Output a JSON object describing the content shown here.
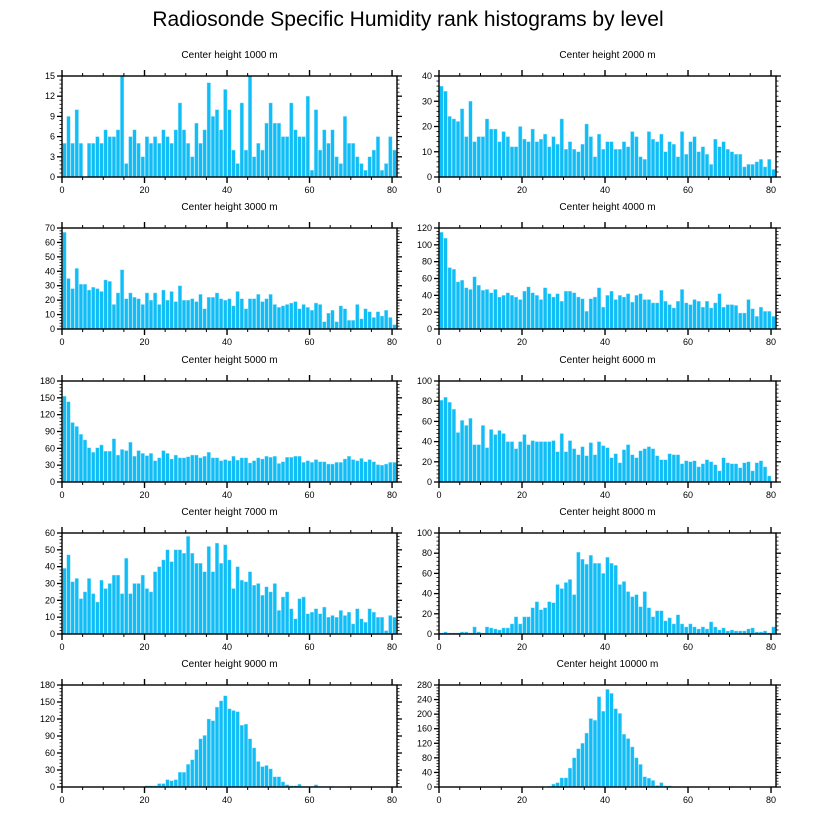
{
  "title": "Radiosonde Specific Humidity rank histograms by level",
  "colors": {
    "bar": "#10bdf6",
    "bar_edge": "#9fe4fb",
    "axis": "#000000"
  },
  "chart_data": [
    {
      "type": "bar",
      "title": "Center height 1000 m",
      "ylim": [
        0,
        15
      ],
      "yticks": [
        0,
        3,
        6,
        9,
        12,
        15
      ],
      "xlim": [
        0,
        81.2
      ],
      "xticks": [
        0,
        20,
        40,
        60,
        80
      ],
      "values": [
        5,
        9,
        5,
        10,
        5,
        0,
        5,
        5,
        6,
        5,
        7,
        6,
        6,
        7,
        15,
        2,
        6,
        7,
        5,
        3,
        6,
        5,
        6,
        5,
        7,
        6,
        5,
        7,
        11,
        7,
        5,
        3,
        8,
        5,
        7,
        14,
        9,
        10,
        7,
        13,
        10,
        4,
        2,
        11,
        4,
        15,
        3,
        5,
        4,
        8,
        11,
        8,
        8,
        6,
        6,
        11,
        7,
        6,
        6,
        12,
        1,
        10,
        4,
        7,
        5,
        7,
        3,
        2,
        9,
        5,
        5,
        3,
        2,
        1,
        3,
        4,
        6,
        1,
        2,
        6,
        4
      ]
    },
    {
      "type": "bar",
      "title": "Center height 2000 m",
      "ylim": [
        0,
        40
      ],
      "yticks": [
        0,
        10,
        20,
        30,
        40
      ],
      "xlim": [
        0,
        81.2
      ],
      "xticks": [
        0,
        20,
        40,
        60,
        80
      ],
      "values": [
        36,
        34,
        24,
        23,
        22,
        27,
        16,
        30,
        14,
        16,
        16,
        23,
        19,
        19,
        14,
        18,
        16,
        12,
        12,
        20,
        15,
        14,
        19,
        14,
        15,
        17,
        12,
        16,
        13,
        23,
        11,
        14,
        11,
        10,
        13,
        21,
        16,
        8,
        17,
        11,
        14,
        14,
        11,
        11,
        14,
        12,
        18,
        16,
        8,
        7,
        18,
        15,
        14,
        17,
        10,
        14,
        13,
        8,
        18,
        9,
        14,
        16,
        10,
        12,
        9,
        5,
        15,
        12,
        14,
        11,
        10,
        9,
        9,
        4,
        5,
        5,
        6,
        7,
        4,
        7,
        3
      ]
    },
    {
      "type": "bar",
      "title": "Center height 3000 m",
      "ylim": [
        0,
        70
      ],
      "yticks": [
        0,
        10,
        20,
        30,
        40,
        50,
        60,
        70
      ],
      "xlim": [
        0,
        81.2
      ],
      "xticks": [
        0,
        20,
        40,
        60,
        80
      ],
      "values": [
        67,
        35,
        28,
        42,
        31,
        31,
        27,
        29,
        28,
        26,
        34,
        33,
        17,
        25,
        41,
        21,
        25,
        22,
        21,
        17,
        25,
        20,
        25,
        17,
        27,
        20,
        26,
        19,
        30,
        20,
        20,
        21,
        19,
        24,
        14,
        22,
        22,
        25,
        21,
        20,
        21,
        16,
        26,
        21,
        14,
        21,
        21,
        24,
        19,
        21,
        24,
        17,
        15,
        16,
        17,
        18,
        19,
        14,
        17,
        15,
        13,
        18,
        17,
        5,
        11,
        13,
        5,
        16,
        14,
        6,
        6,
        17,
        7,
        14,
        12,
        8,
        12,
        9,
        13,
        8,
        3
      ]
    },
    {
      "type": "bar",
      "title": "Center height 4000 m",
      "ylim": [
        0,
        120
      ],
      "yticks": [
        0,
        20,
        40,
        60,
        80,
        100,
        120
      ],
      "xlim": [
        0,
        81.2
      ],
      "xticks": [
        0,
        20,
        40,
        60,
        80
      ],
      "values": [
        115,
        108,
        73,
        71,
        56,
        58,
        49,
        47,
        62,
        52,
        46,
        47,
        43,
        47,
        38,
        40,
        43,
        40,
        38,
        35,
        45,
        50,
        43,
        40,
        35,
        49,
        42,
        38,
        42,
        33,
        45,
        45,
        43,
        38,
        36,
        21,
        36,
        38,
        49,
        26,
        40,
        45,
        35,
        40,
        38,
        42,
        32,
        40,
        42,
        35,
        35,
        31,
        31,
        46,
        33,
        29,
        25,
        33,
        47,
        31,
        29,
        35,
        33,
        26,
        33,
        25,
        31,
        42,
        26,
        29,
        29,
        28,
        19,
        19,
        35,
        24,
        15,
        26,
        21,
        21,
        15
      ]
    },
    {
      "type": "bar",
      "title": "Center height 5000 m",
      "ylim": [
        0,
        180
      ],
      "yticks": [
        0,
        30,
        60,
        90,
        120,
        150,
        180
      ],
      "xlim": [
        0,
        81.2
      ],
      "xticks": [
        0,
        20,
        40,
        60,
        80
      ],
      "values": [
        153,
        143,
        106,
        99,
        85,
        75,
        61,
        53,
        61,
        66,
        55,
        55,
        77,
        48,
        58,
        56,
        71,
        46,
        56,
        51,
        47,
        51,
        38,
        43,
        56,
        51,
        41,
        48,
        43,
        43,
        45,
        48,
        48,
        43,
        46,
        53,
        43,
        43,
        38,
        40,
        38,
        46,
        39,
        43,
        43,
        34,
        38,
        43,
        41,
        46,
        44,
        46,
        33,
        36,
        44,
        44,
        46,
        46,
        35,
        38,
        35,
        40,
        36,
        36,
        32,
        32,
        35,
        35,
        41,
        46,
        40,
        38,
        42,
        36,
        40,
        36,
        31,
        30,
        32,
        35,
        35
      ]
    },
    {
      "type": "bar",
      "title": "Center height 6000 m",
      "ylim": [
        0,
        100
      ],
      "yticks": [
        0,
        20,
        40,
        60,
        80,
        100
      ],
      "xlim": [
        0,
        81.2
      ],
      "xticks": [
        0,
        20,
        40,
        60,
        80
      ],
      "values": [
        81,
        84,
        79,
        72,
        49,
        61,
        56,
        63,
        37,
        37,
        56,
        34,
        52,
        47,
        51,
        48,
        40,
        40,
        33,
        40,
        47,
        37,
        41,
        40,
        40,
        40,
        40,
        41,
        30,
        48,
        30,
        41,
        33,
        27,
        35,
        26,
        39,
        27,
        40,
        36,
        34,
        24,
        28,
        19,
        32,
        37,
        27,
        24,
        31,
        33,
        35,
        33,
        26,
        22,
        22,
        28,
        27,
        27,
        18,
        21,
        20,
        21,
        15,
        18,
        22,
        20,
        17,
        11,
        24,
        19,
        18,
        18,
        14,
        19,
        20,
        11,
        19,
        21,
        15,
        6
      ]
    },
    {
      "type": "bar",
      "title": "Center height 7000 m",
      "ylim": [
        0,
        60
      ],
      "yticks": [
        0,
        10,
        20,
        30,
        40,
        50,
        60
      ],
      "xlim": [
        0,
        81.2
      ],
      "xticks": [
        0,
        20,
        40,
        60,
        80
      ],
      "values": [
        39,
        47,
        31,
        33,
        21,
        25,
        33,
        24,
        19,
        32,
        27,
        30,
        35,
        35,
        24,
        45,
        24,
        30,
        30,
        35,
        27,
        25,
        37,
        40,
        44,
        50,
        43,
        50,
        50,
        48,
        58,
        48,
        42,
        42,
        37,
        52,
        37,
        54,
        42,
        53,
        44,
        27,
        40,
        32,
        31,
        37,
        29,
        30,
        23,
        28,
        25,
        30,
        14,
        22,
        25,
        15,
        9,
        21,
        22,
        12,
        13,
        15,
        12,
        16,
        10,
        11,
        10,
        14,
        11,
        13,
        6,
        15,
        9,
        7,
        15,
        13,
        10,
        10,
        2,
        11,
        10
      ]
    },
    {
      "type": "bar",
      "title": "Center height 8000 m",
      "ylim": [
        0,
        100
      ],
      "yticks": [
        0,
        20,
        40,
        60,
        80,
        100
      ],
      "xlim": [
        0,
        81.2
      ],
      "xticks": [
        0,
        20,
        40,
        60,
        80
      ],
      "values": [
        1,
        2,
        1,
        1,
        1,
        2,
        2,
        1,
        7,
        2,
        1,
        7,
        6,
        5,
        4,
        6,
        6,
        10,
        17,
        10,
        17,
        17,
        26,
        32,
        24,
        26,
        32,
        31,
        49,
        45,
        51,
        54,
        39,
        81,
        74,
        69,
        78,
        70,
        70,
        60,
        76,
        70,
        68,
        49,
        52,
        42,
        37,
        39,
        27,
        42,
        26,
        17,
        23,
        23,
        13,
        16,
        10,
        19,
        10,
        7,
        10,
        7,
        5,
        7,
        5,
        12,
        7,
        4,
        6,
        3,
        4,
        3,
        3,
        3,
        5,
        6,
        2,
        2,
        3,
        1,
        7
      ]
    },
    {
      "type": "bar",
      "title": "Center height 9000 m",
      "ylim": [
        0,
        180
      ],
      "yticks": [
        0,
        30,
        60,
        90,
        120,
        150,
        180
      ],
      "xlim": [
        0,
        81.2
      ],
      "xticks": [
        0,
        20,
        40,
        60,
        80
      ],
      "values": [
        0,
        0,
        0,
        0,
        0,
        0,
        0,
        0,
        0,
        0,
        0,
        0,
        0,
        0,
        0,
        0,
        0,
        0,
        0,
        0,
        2,
        2,
        2,
        6,
        6,
        13,
        11,
        13,
        26,
        26,
        40,
        48,
        66,
        85,
        91,
        120,
        117,
        141,
        152,
        161,
        138,
        135,
        133,
        109,
        111,
        85,
        69,
        45,
        36,
        38,
        32,
        18,
        18,
        9,
        4,
        2,
        2,
        5,
        1,
        1,
        1,
        4,
        1,
        1,
        1,
        1,
        0,
        0,
        0,
        1,
        0,
        0,
        0,
        0,
        0,
        0,
        0,
        0,
        0,
        0,
        0
      ]
    },
    {
      "type": "bar",
      "title": "Center height 10000 m",
      "ylim": [
        0,
        280
      ],
      "yticks": [
        0,
        40,
        80,
        120,
        160,
        200,
        240,
        280
      ],
      "xlim": [
        0,
        81.2
      ],
      "xticks": [
        0,
        20,
        40,
        60,
        80
      ],
      "values": [
        0,
        0,
        0,
        0,
        0,
        0,
        0,
        0,
        0,
        0,
        0,
        0,
        0,
        0,
        0,
        0,
        0,
        0,
        0,
        0,
        0,
        0,
        0,
        1,
        1,
        1,
        2,
        8,
        12,
        25,
        25,
        52,
        80,
        105,
        120,
        148,
        188,
        183,
        248,
        208,
        268,
        257,
        215,
        202,
        145,
        133,
        110,
        80,
        62,
        28,
        24,
        18,
        4,
        12,
        3,
        3,
        0,
        1,
        0,
        0,
        0,
        0,
        0,
        0,
        0,
        0,
        0,
        0,
        0,
        0,
        0,
        0,
        0,
        0,
        0,
        0,
        0,
        0,
        0,
        0,
        0
      ]
    }
  ]
}
